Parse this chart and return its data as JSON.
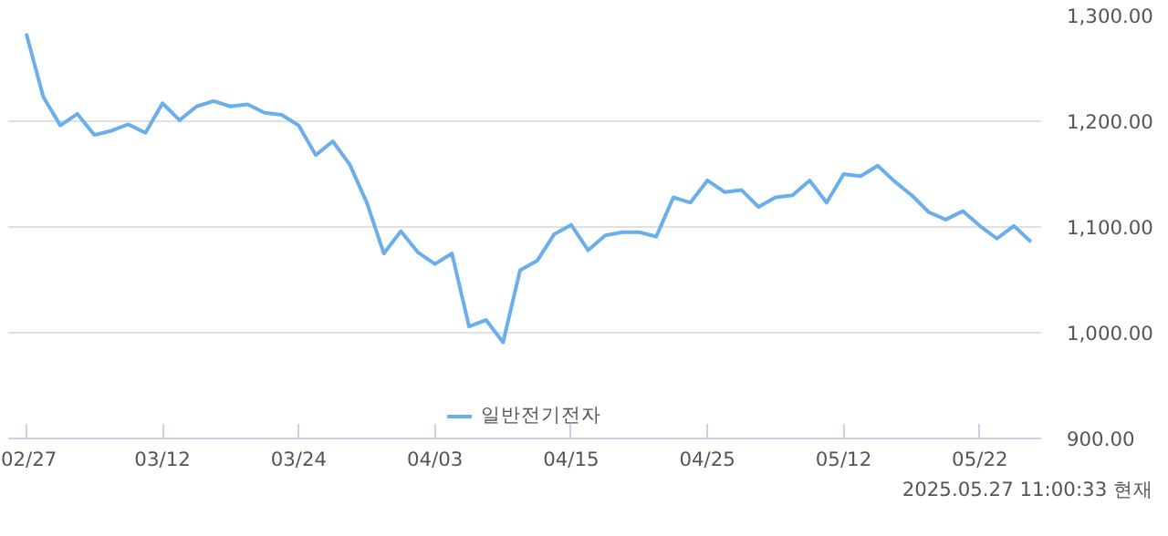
{
  "chart_data": {
    "type": "line",
    "categories": [
      "02/27",
      null,
      null,
      null,
      null,
      null,
      null,
      null,
      "03/12",
      null,
      null,
      null,
      null,
      null,
      null,
      null,
      "03/24",
      null,
      null,
      null,
      null,
      null,
      null,
      null,
      "04/03",
      null,
      null,
      null,
      null,
      null,
      null,
      null,
      "04/15",
      null,
      null,
      null,
      null,
      null,
      null,
      null,
      "04/25",
      null,
      null,
      null,
      null,
      null,
      null,
      null,
      "05/12",
      null,
      null,
      null,
      null,
      null,
      null,
      null,
      "05/22",
      null,
      null,
      null
    ],
    "series": [
      {
        "name": "일반전기전자",
        "color": "#6aaeec",
        "values": [
          1283,
          1223,
          1196,
          1207,
          1187,
          1191,
          1197,
          1189,
          1217,
          1201,
          1214,
          1219,
          1214,
          1216,
          1208,
          1206,
          1196,
          1168,
          1181,
          1159,
          1123,
          1075,
          1096,
          1076,
          1065,
          1075,
          1006,
          1012,
          991,
          1059,
          1068,
          1093,
          1102,
          1078,
          1092,
          1095,
          1095,
          1091,
          1128,
          1123,
          1144,
          1133,
          1135,
          1119,
          1128,
          1130,
          1144,
          1123,
          1150,
          1148,
          1158,
          1143,
          1130,
          1114,
          1107,
          1115,
          1101,
          1089,
          1101,
          1086
        ]
      }
    ],
    "ylim": [
      900,
      1300
    ],
    "yticks": [
      {
        "value": 900,
        "label": "900.00"
      },
      {
        "value": 1000,
        "label": "1,000.00"
      },
      {
        "value": 1100,
        "label": "1,100.00"
      },
      {
        "value": 1200,
        "label": "1,200.00"
      },
      {
        "value": 1300,
        "label": "1,300.00"
      }
    ],
    "grid": "y",
    "legend": "bottom",
    "marker": "none",
    "line_style": "solid",
    "annotations": [
      "2025.05.27 11:00:33 현재"
    ]
  }
}
